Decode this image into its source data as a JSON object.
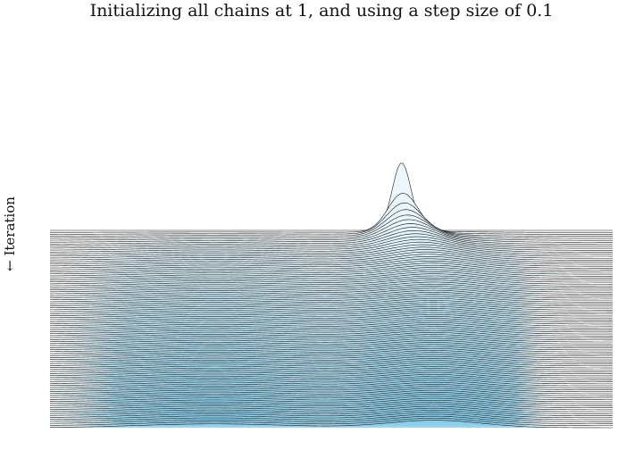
{
  "chart_data": {
    "type": "ridgeline",
    "title": "Initializing all chains at 1, and using a step size of 0.1",
    "ylabel": "← Iteration",
    "xlabel": "",
    "num_iterations": 100,
    "initial_value": 1,
    "step_size": 0.1,
    "target_distribution": {
      "description": "mixture of two normals",
      "components": [
        {
          "mean": -3.0,
          "sd": 1.6,
          "weight": 0.45
        },
        {
          "mean": 1.7,
          "sd": 1.0,
          "weight": 0.55
        }
      ]
    },
    "xlim": [
      -6.5,
      5.5
    ],
    "axes_visible": false,
    "fill_color_top": "#eaf6fb",
    "fill_color_bottom": "#87ceeb",
    "line_color": "#1a1a1a"
  }
}
